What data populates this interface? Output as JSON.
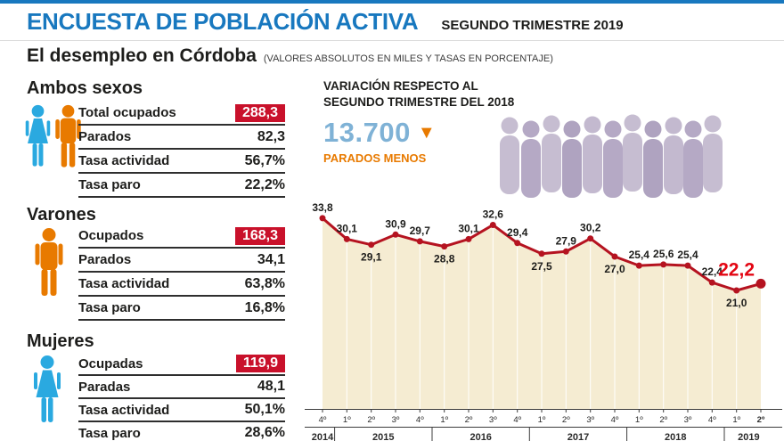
{
  "header": {
    "title": "ENCUESTA DE POBLACIÓN ACTIVA",
    "period": "SEGUNDO TRIMESTRE 2019",
    "subtitle": "El desempleo en Córdoba",
    "subtitle_note": "(VALORES ABSOLUTOS EN MILES Y TASAS EN PORCENTAJE)"
  },
  "sections": {
    "ambos": {
      "title": "Ambos sexos",
      "rows": [
        {
          "label": "Total ocupados",
          "value": "288,3"
        },
        {
          "label": "Parados",
          "value": "82,3"
        },
        {
          "label": "Tasa actividad",
          "value": "56,7%"
        },
        {
          "label": "Tasa paro",
          "value": "22,2%"
        }
      ]
    },
    "varones": {
      "title": "Varones",
      "rows": [
        {
          "label": "Ocupados",
          "value": "168,3"
        },
        {
          "label": "Parados",
          "value": "34,1"
        },
        {
          "label": "Tasa actividad",
          "value": "63,8%"
        },
        {
          "label": "Tasa paro",
          "value": "16,8%"
        }
      ]
    },
    "mujeres": {
      "title": "Mujeres",
      "rows": [
        {
          "label": "Ocupadas",
          "value": "119,9"
        },
        {
          "label": "Paradas",
          "value": "48,1"
        },
        {
          "label": "Tasa actividad",
          "value": "50,1%"
        },
        {
          "label": "Tasa paro",
          "value": "28,6%"
        }
      ]
    }
  },
  "variation": {
    "heading": "VARIACIÓN RESPECTO AL SEGUNDO TRIMESTRE DEL 2018",
    "value": "13.700",
    "caption": "PARADOS MENOS"
  },
  "icons": {
    "arrow_down": "▼"
  },
  "chart_data": {
    "type": "line",
    "groups": [
      {
        "year": "2014",
        "quarters": [
          "4º"
        ]
      },
      {
        "year": "2015",
        "quarters": [
          "1º",
          "2º",
          "3º",
          "4º"
        ]
      },
      {
        "year": "2016",
        "quarters": [
          "1º",
          "2º",
          "3º",
          "4º"
        ]
      },
      {
        "year": "2017",
        "quarters": [
          "1º",
          "2º",
          "3º",
          "4º"
        ]
      },
      {
        "year": "2018",
        "quarters": [
          "1º",
          "2º",
          "3º",
          "4º"
        ]
      },
      {
        "year": "2019",
        "quarters": [
          "1º",
          "2º"
        ]
      }
    ],
    "values": [
      33.8,
      30.1,
      29.1,
      30.9,
      29.7,
      28.8,
      30.1,
      32.6,
      29.4,
      27.5,
      27.9,
      30.2,
      27.0,
      25.4,
      25.6,
      25.4,
      22.4,
      21.0,
      22.2
    ],
    "point_labels": [
      "33,8",
      "30,1",
      "29,1",
      "30,9",
      "29,7",
      "28,8",
      "30,1",
      "32,6",
      "29,4",
      "27,5",
      "27,9",
      "30,2",
      "27,0",
      "25,4",
      "25,6",
      "25,4",
      "22,4",
      "21,0",
      "22,2"
    ],
    "labels_below_indices": [
      2,
      5,
      9,
      12,
      17
    ],
    "ylim": [
      0,
      36
    ],
    "grid": "vertical-white",
    "legend": "none",
    "line_color": "#b51320",
    "fill_color": "#f5ecd2",
    "highlight_color": "#e30613"
  },
  "colors": {
    "title_blue": "#1878bf",
    "male_orange": "#e87a00",
    "female_blue": "#2aa9e0",
    "value_box_red": "#c9112b",
    "variation_value_blue": "#7fb2d6",
    "crowd_purple": "#c2b8cd"
  }
}
